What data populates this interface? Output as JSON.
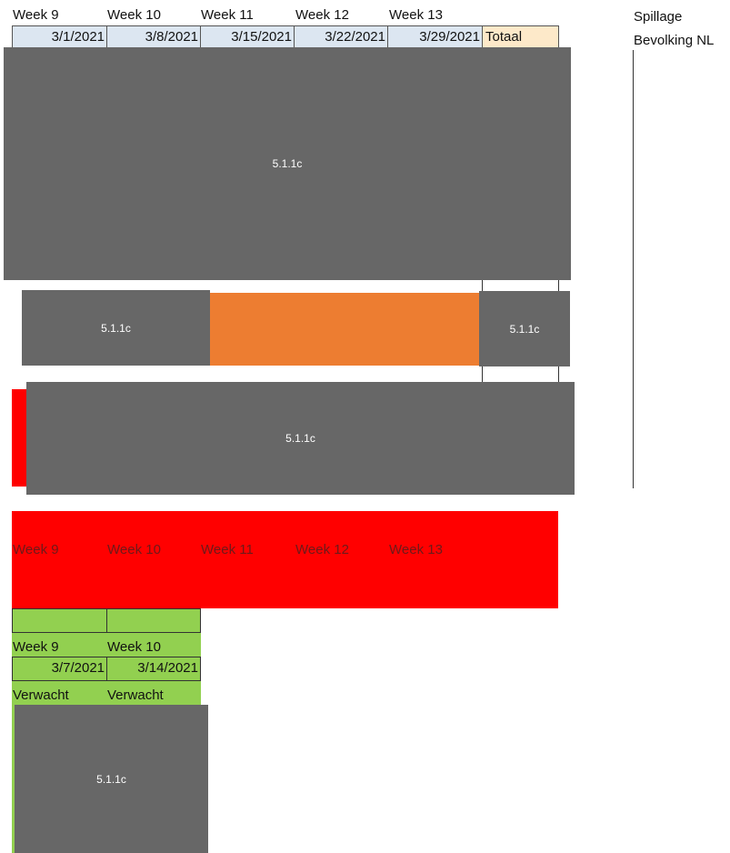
{
  "header": {
    "weeks": [
      "Week 9",
      "Week 10",
      "Week 11",
      "Week 12",
      "Week 13"
    ],
    "dates": [
      "3/1/2021",
      "3/8/2021",
      "3/15/2021",
      "3/22/2021",
      "3/29/2021"
    ],
    "total_label": "Totaal"
  },
  "side": {
    "spillage": "Spillage",
    "population": "Bevolking NL"
  },
  "redaction_label": "5.1.1c",
  "red_row": {
    "weeks": [
      "Week 9",
      "Week 10",
      "Week 11",
      "Week 12",
      "Week 13"
    ]
  },
  "expected": {
    "weeks": [
      "Week 9",
      "Week 10"
    ],
    "dates": [
      "3/7/2021",
      "3/14/2021"
    ],
    "labels": [
      "Verwacht",
      "Verwacht"
    ]
  },
  "colors": {
    "redaction_grey": "#676767",
    "orange": "#ed7d31",
    "red": "#ff0000",
    "green": "#92d050",
    "header_blue": "#dce6f1",
    "header_total": "#fde9c9"
  }
}
